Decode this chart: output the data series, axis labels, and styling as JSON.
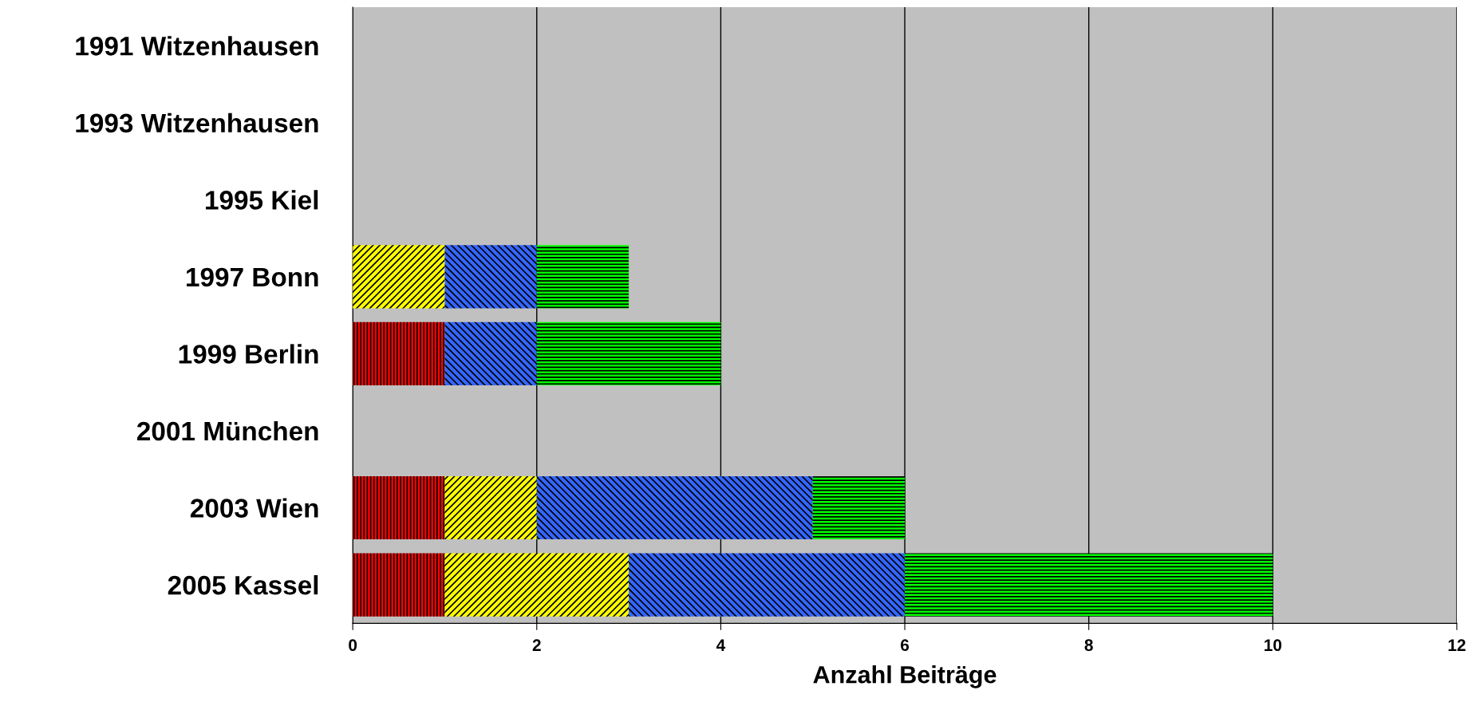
{
  "chart_data": {
    "type": "bar",
    "orientation": "horizontal",
    "stacked": true,
    "xlabel": "Anzahl Beiträge",
    "categories": [
      "1991 Witzenhausen",
      "1993 Witzenhausen",
      "1995 Kiel",
      "1997 Bonn",
      "1999 Berlin",
      "2001 München",
      "2003 Wien",
      "2005 Kassel"
    ],
    "series": [
      {
        "color": "#ff0000",
        "values": [
          0,
          0,
          0,
          0,
          1,
          0,
          1,
          1
        ]
      },
      {
        "color": "#ffff00",
        "values": [
          0,
          0,
          0,
          1,
          0,
          0,
          1,
          2
        ]
      },
      {
        "color": "#3366ff",
        "values": [
          0,
          0,
          0,
          1,
          1,
          0,
          3,
          3
        ]
      },
      {
        "color": "#00ff00",
        "values": [
          0,
          0,
          0,
          1,
          2,
          0,
          1,
          4
        ]
      }
    ],
    "xlim": [
      0,
      12
    ],
    "xticks": [
      0,
      2,
      4,
      6,
      8,
      10,
      12
    ],
    "grid": "x",
    "legend": false
  }
}
